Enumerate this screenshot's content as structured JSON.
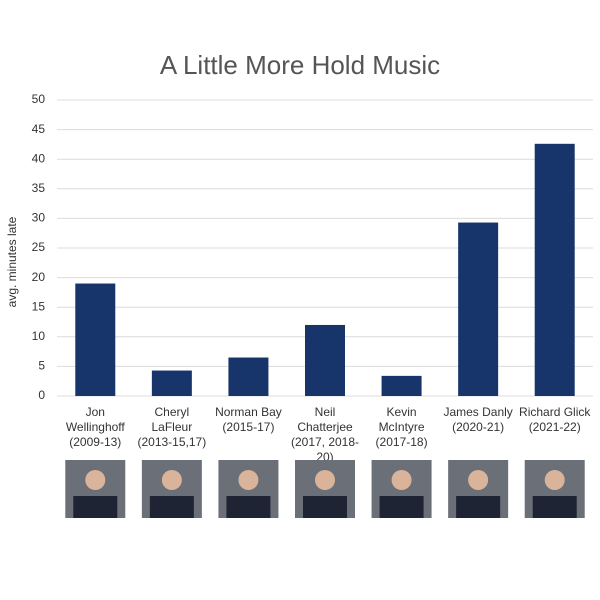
{
  "chart_data": {
    "type": "bar",
    "title": "A Little More Hold Music",
    "y_label": "avg. minutes late",
    "categories": [
      [
        "Jon",
        "Wellinghoff",
        "(2009-13)"
      ],
      [
        "Cheryl",
        "LaFleur",
        "(2013-15,17)"
      ],
      [
        "Norman Bay",
        "(2015-17)"
      ],
      [
        "Neil",
        "Chatterjee",
        "(2017, 2018-",
        "20)"
      ],
      [
        "Kevin",
        "McIntyre",
        "(2017-18)"
      ],
      [
        "James Danly",
        "(2020-21)"
      ],
      [
        "Richard Glick",
        "(2021-22)"
      ]
    ],
    "values": [
      19,
      4.3,
      6.5,
      12,
      3.4,
      29.3,
      42.6
    ],
    "color": "#17356b",
    "ylim": [
      0,
      50
    ],
    "yticks": [
      0,
      5,
      10,
      15,
      20,
      25,
      30,
      35,
      40,
      45,
      50
    ],
    "grid": true
  }
}
